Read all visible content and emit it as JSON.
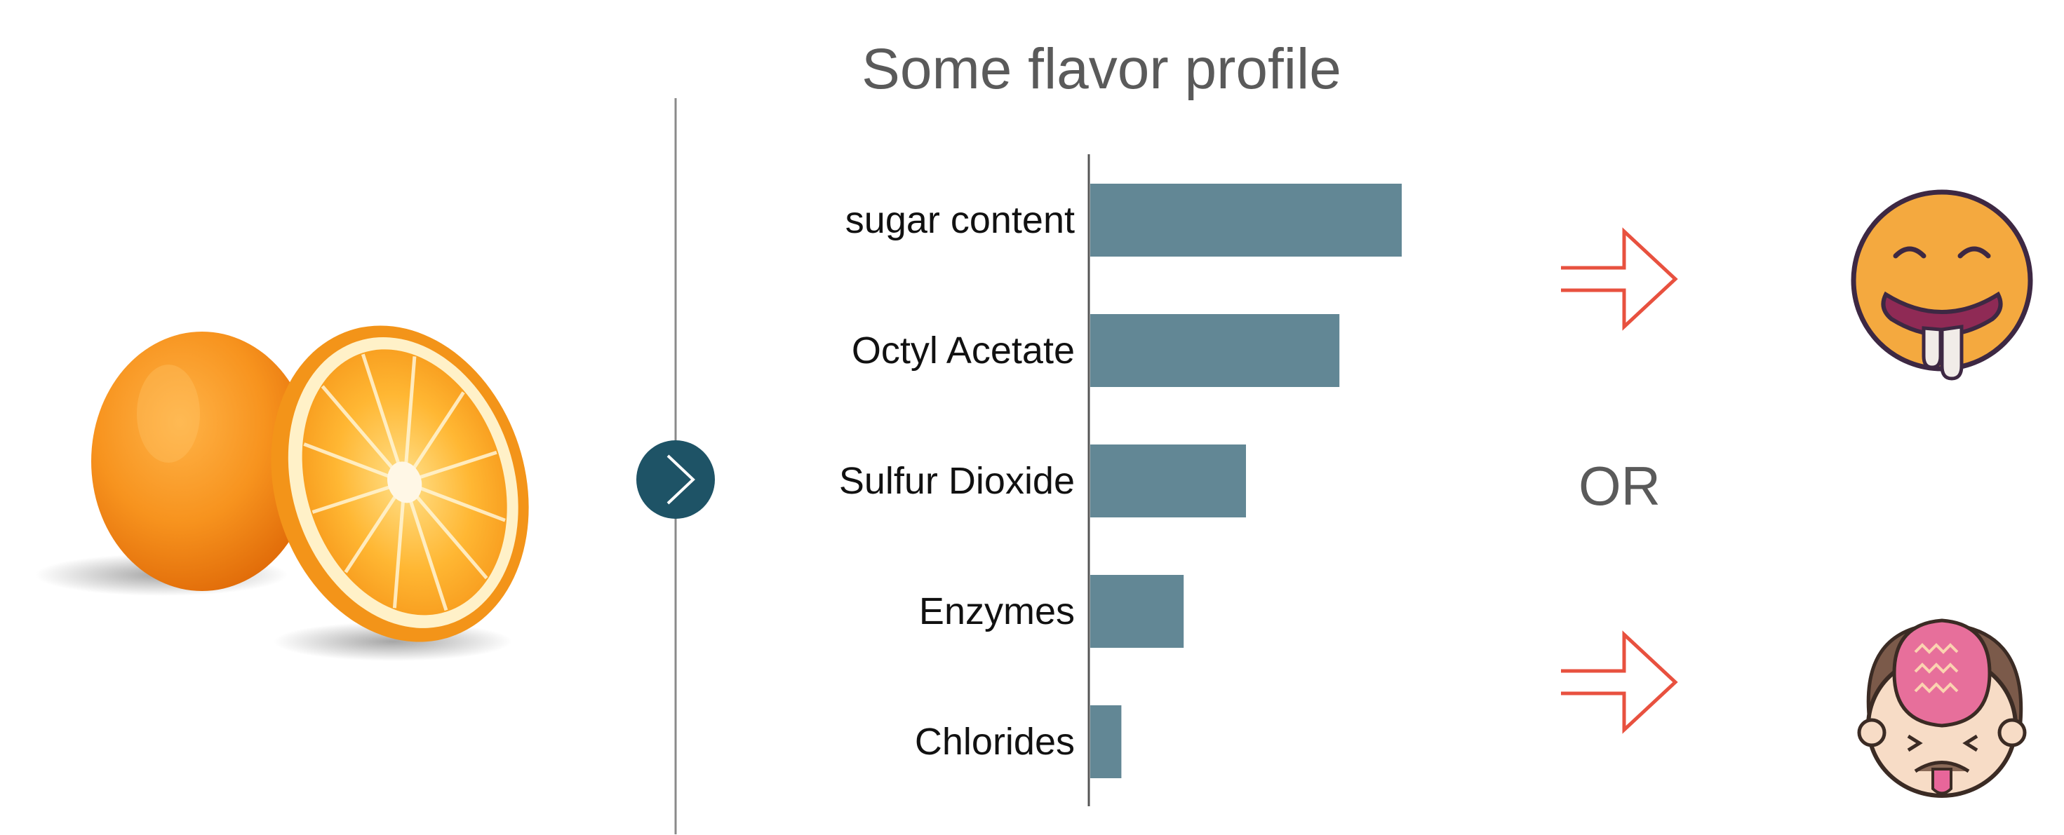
{
  "colors": {
    "bar": "#628795",
    "divider": "#8a8a8a",
    "nav_circle": "#1e5366",
    "arrow": "#e8513f",
    "title_text": "#5a5a5a"
  },
  "icons": {
    "fruit": "orange-halves-image",
    "next": "chevron-right-icon",
    "good_outcome": "drooling-face-icon",
    "bad_outcome": "disgusted-face-icon",
    "arrow": "arrow-right-outline-icon"
  },
  "or_label": "OR",
  "chart_data": {
    "type": "bar",
    "orientation": "horizontal",
    "title": "Some flavor profile",
    "categories": [
      "sugar content",
      "Octyl Acetate",
      "Sulfur Dioxide",
      "Enzymes",
      "Chlorides"
    ],
    "values": [
      100,
      80,
      50,
      30,
      10
    ],
    "xlim": [
      0,
      100
    ],
    "xlabel": "",
    "ylabel": "",
    "grid": false,
    "legend": "none"
  }
}
